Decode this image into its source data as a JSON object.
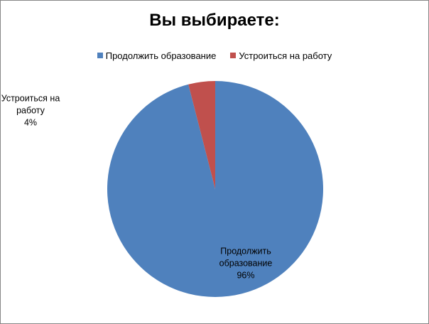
{
  "chart_data": {
    "type": "pie",
    "title": "Вы выбираете:",
    "categories": [
      "Продолжить образование",
      "Устроиться на работу"
    ],
    "values": [
      96,
      4
    ],
    "value_labels": [
      "96%",
      "4%"
    ],
    "colors": [
      "#4f81bd",
      "#c0504d"
    ],
    "legend": "top"
  }
}
